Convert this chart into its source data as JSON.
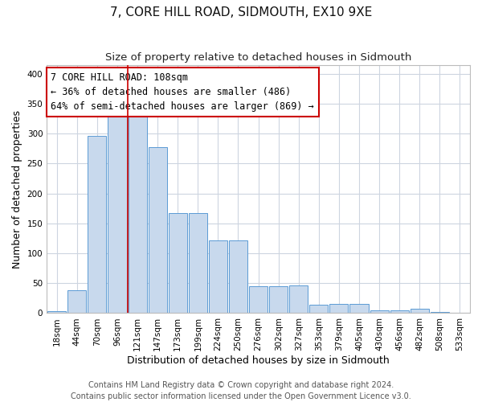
{
  "title": "7, CORE HILL ROAD, SIDMOUTH, EX10 9XE",
  "subtitle": "Size of property relative to detached houses in Sidmouth",
  "xlabel": "Distribution of detached houses by size in Sidmouth",
  "ylabel": "Number of detached properties",
  "bar_labels": [
    "18sqm",
    "44sqm",
    "70sqm",
    "96sqm",
    "121sqm",
    "147sqm",
    "173sqm",
    "199sqm",
    "224sqm",
    "250sqm",
    "276sqm",
    "302sqm",
    "327sqm",
    "353sqm",
    "379sqm",
    "405sqm",
    "430sqm",
    "456sqm",
    "482sqm",
    "508sqm",
    "533sqm"
  ],
  "bar_values": [
    3,
    38,
    296,
    328,
    328,
    278,
    167,
    167,
    121,
    121,
    45,
    45,
    46,
    14,
    16,
    16,
    5,
    5,
    7,
    2,
    1
  ],
  "bar_color": "#c8d9ed",
  "bar_edge_color": "#5b9bd5",
  "property_line_x": 3.5,
  "annotation_text": "7 CORE HILL ROAD: 108sqm\n← 36% of detached houses are smaller (486)\n64% of semi-detached houses are larger (869) →",
  "annotation_box_color": "#ffffff",
  "annotation_box_edge": "#cc0000",
  "vline_color": "#cc0000",
  "ylim": [
    0,
    415
  ],
  "yticks": [
    0,
    50,
    100,
    150,
    200,
    250,
    300,
    350,
    400
  ],
  "footer_line1": "Contains HM Land Registry data © Crown copyright and database right 2024.",
  "footer_line2": "Contains public sector information licensed under the Open Government Licence v3.0.",
  "bg_color": "#ffffff",
  "grid_color": "#cdd5e0",
  "title_fontsize": 11,
  "subtitle_fontsize": 9.5,
  "axis_label_fontsize": 9,
  "tick_fontsize": 7.5,
  "annotation_fontsize": 8.5,
  "footer_fontsize": 7
}
